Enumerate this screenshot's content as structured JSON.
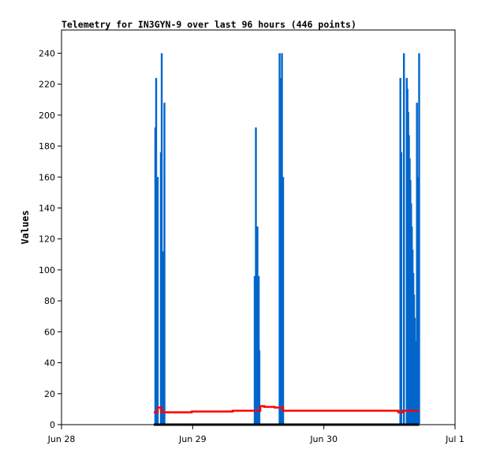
{
  "chart_data": {
    "type": "bar",
    "title": "Telemetry for IN3GYN-9 over last 96 hours (446 points)",
    "xlabel": "",
    "ylabel": "Values",
    "ylim": [
      0,
      255
    ],
    "xlim": [
      "Jun 28 00:00",
      "Jul 1 00:00"
    ],
    "yticks": [
      0,
      20,
      40,
      60,
      80,
      100,
      120,
      140,
      160,
      180,
      200,
      220,
      240
    ],
    "xticks": [
      {
        "t": "Jun 28 00:00",
        "label": "Jun 28"
      },
      {
        "t": "Jun 29 00:00",
        "label": "Jun 29"
      },
      {
        "t": "Jun 30 00:00",
        "label": "Jun 30"
      },
      {
        "t": "Jul 1 00:00",
        "label": "Jul 1"
      }
    ],
    "grid": false,
    "series": [
      {
        "style": "bars",
        "color": "#0066cc",
        "points": [
          [
            "Jun 28 17:10",
            192
          ],
          [
            "Jun 28 17:19",
            224
          ],
          [
            "Jun 28 17:36",
            160
          ],
          [
            "Jun 28 18:11",
            176
          ],
          [
            "Jun 28 18:20",
            240
          ],
          [
            "Jun 28 18:37",
            112
          ],
          [
            "Jun 28 18:50",
            208
          ],
          [
            "Jun 29 11:21",
            96
          ],
          [
            "Jun 29 11:34",
            192
          ],
          [
            "Jun 29 11:51",
            128
          ],
          [
            "Jun 29 12:05",
            96
          ],
          [
            "Jun 29 12:12",
            48
          ],
          [
            "Jun 29 15:54",
            240
          ],
          [
            "Jun 29 16:07",
            224
          ],
          [
            "Jun 29 16:20",
            240
          ],
          [
            "Jun 29 16:33",
            160
          ],
          [
            "Jun 30 14:00",
            224
          ],
          [
            "Jun 30 14:10",
            176
          ],
          [
            "Jun 30 14:39",
            240
          ],
          [
            "Jun 30 15:10",
            224
          ],
          [
            "Jun 30 15:18",
            217
          ],
          [
            "Jun 30 15:26",
            202
          ],
          [
            "Jun 30 15:34",
            187
          ],
          [
            "Jun 30 15:42",
            172
          ],
          [
            "Jun 30 15:50",
            158
          ],
          [
            "Jun 30 15:58",
            143
          ],
          [
            "Jun 30 16:06",
            128
          ],
          [
            "Jun 30 16:14",
            113
          ],
          [
            "Jun 30 16:22",
            98
          ],
          [
            "Jun 30 16:30",
            84
          ],
          [
            "Jun 30 16:38",
            69
          ],
          [
            "Jun 30 16:46",
            54
          ],
          [
            "Jun 30 16:54",
            39
          ],
          [
            "Jun 30 17:02",
            208
          ],
          [
            "Jun 30 17:10",
            112
          ],
          [
            "Jun 30 17:18",
            160
          ],
          [
            "Jun 30 17:26",
            240
          ]
        ]
      },
      {
        "style": "step",
        "color": "#ff0000",
        "points": [
          [
            "Jun 28 16:53",
            8
          ],
          [
            "Jun 28 17:36",
            11
          ],
          [
            "Jun 28 18:20",
            8
          ],
          [
            "Jun 28 23:49",
            8.5
          ],
          [
            "Jun 29 07:19",
            9
          ],
          [
            "Jun 29 12:22",
            12
          ],
          [
            "Jun 29 13:05",
            11.5
          ],
          [
            "Jun 29 15:00",
            11
          ],
          [
            "Jun 29 16:33",
            9
          ],
          [
            "Jun 30 13:37",
            8
          ],
          [
            "Jun 30 14:29",
            9
          ],
          [
            "Jun 30 17:26",
            9
          ]
        ]
      },
      {
        "style": "step",
        "color": "#000000",
        "points": [
          [
            "Jun 28 16:53",
            0
          ],
          [
            "Jun 30 17:26",
            0
          ]
        ]
      }
    ]
  }
}
